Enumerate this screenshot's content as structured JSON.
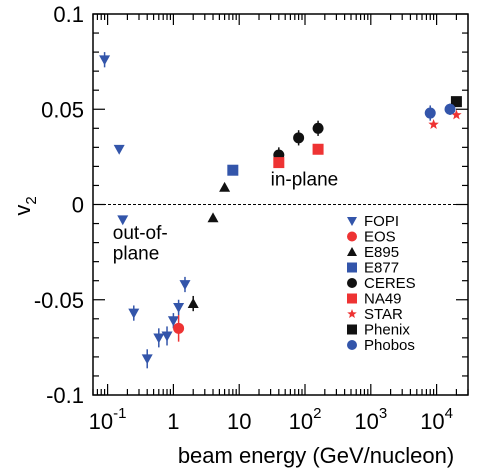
{
  "chart_data": {
    "type": "scatter",
    "xscale": "log",
    "xlim": [
      0.06,
      30000
    ],
    "ylim": [
      -0.1,
      0.1
    ],
    "xlabel": "beam energy   (GeV/nucleon)",
    "ylabel": "v2",
    "ylabel_base": "v",
    "ylabel_sub": "2",
    "x_ticks": [
      {
        "value": 0.1,
        "base": "10",
        "exp": "-1"
      },
      {
        "value": 1,
        "base": "1",
        "exp": ""
      },
      {
        "value": 10,
        "base": "10",
        "exp": ""
      },
      {
        "value": 100,
        "base": "10",
        "exp": "2"
      },
      {
        "value": 1000,
        "base": "10",
        "exp": "3"
      },
      {
        "value": 10000,
        "base": "10",
        "exp": "4"
      }
    ],
    "y_ticks": [
      {
        "value": 0.1,
        "label": "0.1"
      },
      {
        "value": 0.05,
        "label": "0.05"
      },
      {
        "value": 0,
        "label": "0"
      },
      {
        "value": -0.05,
        "label": "-0.05"
      },
      {
        "value": -0.1,
        "label": "-0.1"
      }
    ],
    "zero_line": {
      "style": "dashed"
    },
    "annotations": [
      {
        "text": "in-plane",
        "x": 30,
        "y": 0.01
      },
      {
        "text": "out-of-",
        "x": 0.12,
        "y": -0.018
      },
      {
        "text": "plane",
        "x": 0.12,
        "y": -0.029
      }
    ],
    "legend": {
      "placement": "lower-right"
    },
    "series": [
      {
        "name": "FOPI",
        "marker": "triangle-down",
        "color": "#3355aa",
        "points": [
          {
            "x": 0.09,
            "y": 0.076,
            "err": 0.004
          },
          {
            "x": 0.15,
            "y": 0.029,
            "err": 0.0
          },
          {
            "x": 0.17,
            "y": -0.008,
            "err": 0.0
          },
          {
            "x": 0.25,
            "y": -0.057,
            "err": 0.004
          },
          {
            "x": 0.4,
            "y": -0.081,
            "err": 0.005
          },
          {
            "x": 0.6,
            "y": -0.07,
            "err": 0.005
          },
          {
            "x": 0.8,
            "y": -0.069,
            "err": 0.005
          },
          {
            "x": 1.0,
            "y": -0.061,
            "err": 0.004
          },
          {
            "x": 1.2,
            "y": -0.054,
            "err": 0.004
          },
          {
            "x": 1.5,
            "y": -0.042,
            "err": 0.004
          }
        ]
      },
      {
        "name": "EOS",
        "marker": "circle",
        "color": "#ee3333",
        "points": [
          {
            "x": 1.2,
            "y": -0.065,
            "err": 0.007
          }
        ]
      },
      {
        "name": "E895",
        "marker": "triangle-up",
        "color": "#111111",
        "points": [
          {
            "x": 2.0,
            "y": -0.052,
            "err": 0.004
          },
          {
            "x": 4.0,
            "y": -0.007,
            "err": 0.0
          },
          {
            "x": 6.0,
            "y": 0.009,
            "err": 0.0
          }
        ]
      },
      {
        "name": "E877",
        "marker": "square",
        "color": "#3355aa",
        "points": [
          {
            "x": 8.0,
            "y": 0.018,
            "err": 0.0
          }
        ]
      },
      {
        "name": "CERES",
        "marker": "circle",
        "color": "#111111",
        "points": [
          {
            "x": 40,
            "y": 0.026,
            "err": 0.004
          },
          {
            "x": 80,
            "y": 0.035,
            "err": 0.004
          },
          {
            "x": 158,
            "y": 0.04,
            "err": 0.004
          }
        ]
      },
      {
        "name": "NA49",
        "marker": "square",
        "color": "#ee3333",
        "points": [
          {
            "x": 40,
            "y": 0.022,
            "err": 0.0
          },
          {
            "x": 158,
            "y": 0.029,
            "err": 0.0
          }
        ]
      },
      {
        "name": "STAR",
        "marker": "star",
        "color": "#ee3333",
        "points": [
          {
            "x": 9000,
            "y": 0.042,
            "err": 0.0
          },
          {
            "x": 20000,
            "y": 0.047,
            "err": 0.0
          }
        ]
      },
      {
        "name": "Phenix",
        "marker": "square",
        "color": "#111111",
        "points": [
          {
            "x": 20000,
            "y": 0.054,
            "err": 0.0
          }
        ]
      },
      {
        "name": "Phobos",
        "marker": "circle",
        "color": "#3355aa",
        "points": [
          {
            "x": 8000,
            "y": 0.048,
            "err": 0.004
          },
          {
            "x": 16000,
            "y": 0.05,
            "err": 0.003
          }
        ]
      }
    ]
  }
}
